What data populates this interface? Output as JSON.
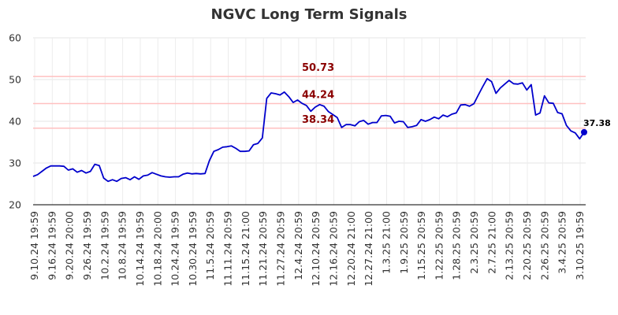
{
  "chart_data": {
    "type": "line",
    "title": "NGVC Long Term Signals",
    "ylim": [
      20,
      60
    ],
    "yticks": [
      20,
      30,
      40,
      50,
      60
    ],
    "grid": true,
    "x_tick_labels": [
      "9.10.24 19:59",
      "9.16.24 19:59",
      "9.20.24 20:00",
      "9.26.24 19:59",
      "10.2.24 19:59",
      "10.8.24 19:59",
      "10.14.24 19:59",
      "10.18.24 20:00",
      "10.24.24 19:59",
      "10.30.24 19:59",
      "11.5.24 20:59",
      "11.11.24 20:59",
      "11.15.24 21:00",
      "11.21.24 20:59",
      "11.27.24 20:59",
      "12.4.24 20:59",
      "12.10.24 20:59",
      "12.16.24 20:59",
      "12.20.24 21:00",
      "12.27.24 21:00",
      "1.3.25 21:00",
      "1.9.25 20:59",
      "1.15.25 20:59",
      "1.22.25 20:59",
      "1.28.25 20:59",
      "2.3.25 20:59",
      "2.7.25 21:00",
      "2.13.25 20:59",
      "2.20.25 20:59",
      "2.26.25 20:59",
      "3.4.25 20:59",
      "3.10.25 19:59"
    ],
    "horizontal_lines": [
      {
        "value": 50.73,
        "label": "50.73",
        "color": "#ffc0c0"
      },
      {
        "value": 44.24,
        "label": "44.24",
        "color": "#ffc0c0"
      },
      {
        "value": 38.34,
        "label": "38.34",
        "color": "#ffc0c0"
      }
    ],
    "series": [
      {
        "color": "#0000cc",
        "values": [
          26.8,
          27.2,
          28.0,
          28.8,
          29.3,
          29.3,
          29.3,
          29.2,
          28.3,
          28.6,
          27.8,
          28.2,
          27.6,
          28.0,
          29.7,
          29.4,
          26.4,
          25.6,
          26.0,
          25.6,
          26.3,
          26.5,
          26.0,
          26.7,
          26.1,
          26.9,
          27.1,
          27.7,
          27.3,
          26.9,
          26.7,
          26.6,
          26.7,
          26.7,
          27.3,
          27.6,
          27.4,
          27.5,
          27.4,
          27.5,
          30.6,
          32.8,
          33.2,
          33.8,
          33.9,
          34.1,
          33.5,
          32.8,
          32.8,
          32.9,
          34.4,
          34.7,
          36.0,
          45.5,
          46.8,
          46.6,
          46.3,
          47.0,
          45.9,
          44.5,
          45.1,
          44.3,
          43.8,
          42.4,
          43.4,
          44.0,
          43.6,
          42.3,
          41.6,
          40.9,
          38.5,
          39.2,
          39.2,
          38.9,
          39.9,
          40.2,
          39.3,
          39.7,
          39.7,
          41.3,
          41.4,
          41.2,
          39.6,
          40.0,
          39.9,
          38.5,
          38.7,
          39.0,
          40.4,
          40.0,
          40.4,
          41.0,
          40.6,
          41.5,
          41.1,
          41.7,
          42.0,
          43.9,
          44.0,
          43.6,
          44.2,
          46.3,
          48.3,
          50.2,
          49.5,
          46.7,
          48.0,
          48.9,
          49.8,
          49.0,
          48.9,
          49.2,
          47.5,
          48.8,
          41.5,
          42.0,
          46.1,
          44.4,
          44.3,
          42.1,
          41.8,
          39.0,
          37.7,
          37.2,
          35.8,
          37.38
        ]
      }
    ],
    "last_value_label": "37.38"
  }
}
